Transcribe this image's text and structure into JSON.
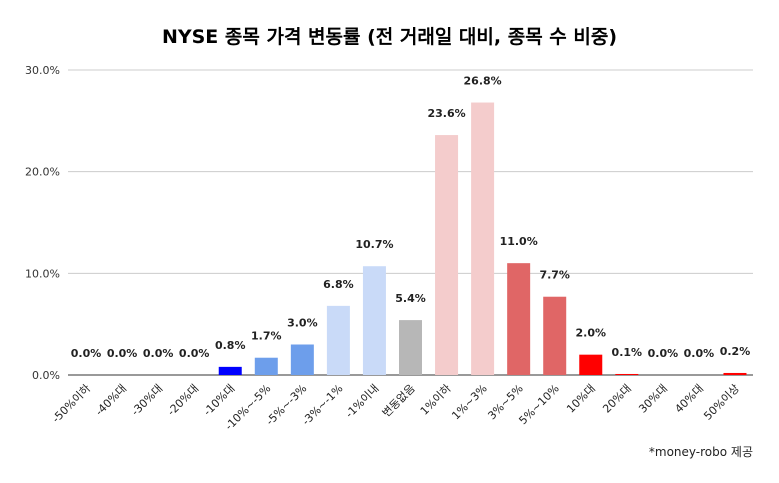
{
  "chart_data": {
    "type": "bar",
    "title": "NYSE 종목 가격 변동률 (전 거래일 대비,  종목 수 비중)",
    "credit": "*money-robo 제공",
    "ylim": [
      0,
      30
    ],
    "yticks": [
      "0.0%",
      "10.0%",
      "20.0%",
      "30.0%"
    ],
    "grid": true,
    "categories": [
      "-50%이하",
      "-40%대",
      "-30%대",
      "-20%대",
      "-10%대",
      "-10%~-5%",
      "-5%~-3%",
      "-3%~-1%",
      "-1%이내",
      "변동없음",
      "1%이하",
      "1%~3%",
      "3%~5%",
      "5%~10%",
      "10%대",
      "20%대",
      "30%대",
      "40%대",
      "50%이상"
    ],
    "values": [
      0.0,
      0.0,
      0.0,
      0.0,
      0.8,
      1.7,
      3.0,
      6.8,
      10.7,
      5.4,
      23.6,
      26.8,
      11.0,
      7.7,
      2.0,
      0.1,
      0.0,
      0.0,
      0.2
    ],
    "labels": [
      "0.0%",
      "0.0%",
      "0.0%",
      "0.0%",
      "0.8%",
      "1.7%",
      "3.0%",
      "6.8%",
      "10.7%",
      "5.4%",
      "23.6%",
      "26.8%",
      "11.0%",
      "7.7%",
      "2.0%",
      "0.1%",
      "0.0%",
      "0.0%",
      "0.2%"
    ],
    "colors": [
      "#0000ff",
      "#0000ff",
      "#0000ff",
      "#0000ff",
      "#0000ff",
      "#6d9eeb",
      "#6d9eeb",
      "#c9daf8",
      "#c9daf8",
      "#b7b7b7",
      "#f4cccc",
      "#f4cccc",
      "#e06666",
      "#e06666",
      "#ff0000",
      "#ff0000",
      "#ff0000",
      "#ff0000",
      "#ff0000"
    ]
  }
}
